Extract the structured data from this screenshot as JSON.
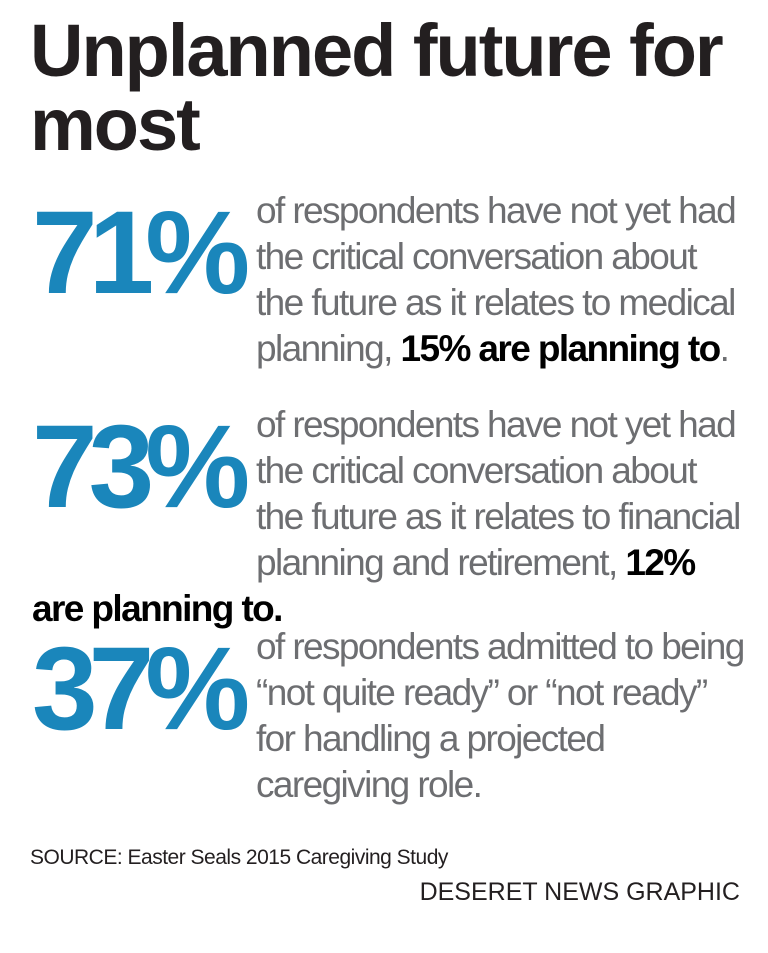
{
  "title": "Unplanned future for most",
  "stats": [
    {
      "number": "71%",
      "text": "of respondents have not yet had the critical conversation about the future as it relates to medical planning,",
      "highlight": "15% are planning to",
      "end": "."
    },
    {
      "number": "73%",
      "text": "of respondents have not yet had the critical conversation about the future as it relates to financial planning and retirement,",
      "highlight": "12% are planning to."
    },
    {
      "number": "37%",
      "text": "of respondents admitted to being “not quite ready” or “not ready” for handling a projected caregiving role."
    }
  ],
  "source": "SOURCE: Easter Seals 2015 Caregiving Study",
  "credit": "DESERET NEWS GRAPHIC"
}
